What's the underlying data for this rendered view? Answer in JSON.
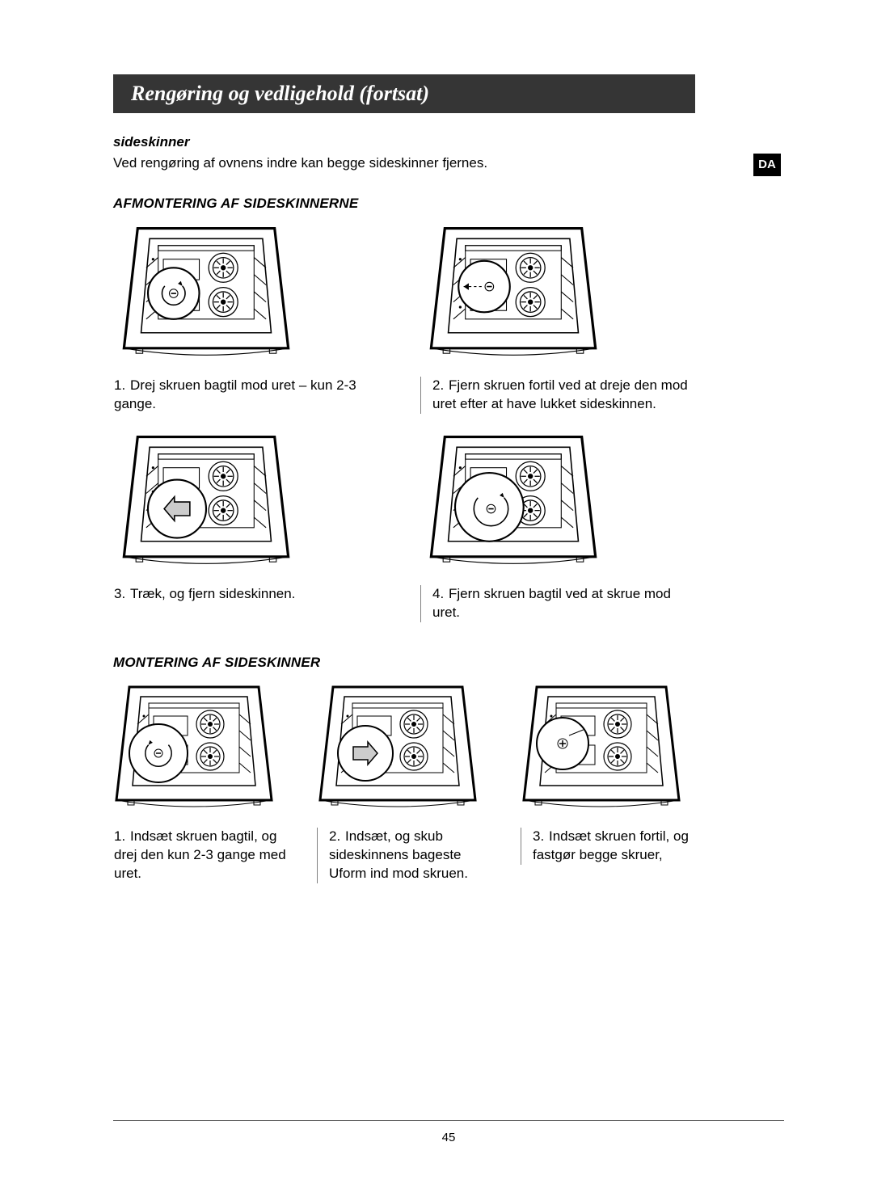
{
  "page": {
    "title": "Rengøring og vedligehold (fortsat)",
    "lang_badge": "DA",
    "page_number": "45"
  },
  "colors": {
    "titlebar_bg": "#353535",
    "titlebar_fg": "#ffffff",
    "body_fg": "#000000",
    "badge_bg": "#000000",
    "rule": "#555555",
    "sep": "#808080"
  },
  "sideskinner": {
    "heading": "sideskinner",
    "intro": "Ved rengøring af ovnens indre kan begge sideskinner fjernes."
  },
  "removal": {
    "heading": "AFMONTERING AF SIDESKINNERNE",
    "steps": [
      {
        "num": "1.",
        "text": "Drej skruen bagtil mod uret – kun 2-3 gange.",
        "detail": "screw-ccw-rear"
      },
      {
        "num": "2.",
        "text": "Fjern skruen fortil ved at dreje den mod uret efter at have lukket sideskinnen.",
        "detail": "screw-remove-front"
      },
      {
        "num": "3.",
        "text": "Træk, og fjern sideskinnen.",
        "detail": "pull-rail-out"
      },
      {
        "num": "4.",
        "text": "Fjern skruen bagtil ved at skrue mod uret.",
        "detail": "screw-ccw-large"
      }
    ]
  },
  "mounting": {
    "heading": "MONTERING AF SIDESKINNER",
    "steps": [
      {
        "num": "1.",
        "text": "Indsæt skruen bagtil, og drej den kun 2-3 gange med uret.",
        "detail": "screw-cw-insert"
      },
      {
        "num": "2.",
        "text": "Indsæt, og skub sideskinnens bageste Uform ind mod skruen.",
        "detail": "push-rail-in"
      },
      {
        "num": "3.",
        "text": "Indsæt skruen fortil, og fastgør begge skruer,",
        "detail": "screw-front-insert"
      }
    ]
  },
  "diagram_style": {
    "background": "#ffffff",
    "stroke": "#000000",
    "lens_fill": "#ffffff",
    "arrow_fill": "#cccccc"
  }
}
